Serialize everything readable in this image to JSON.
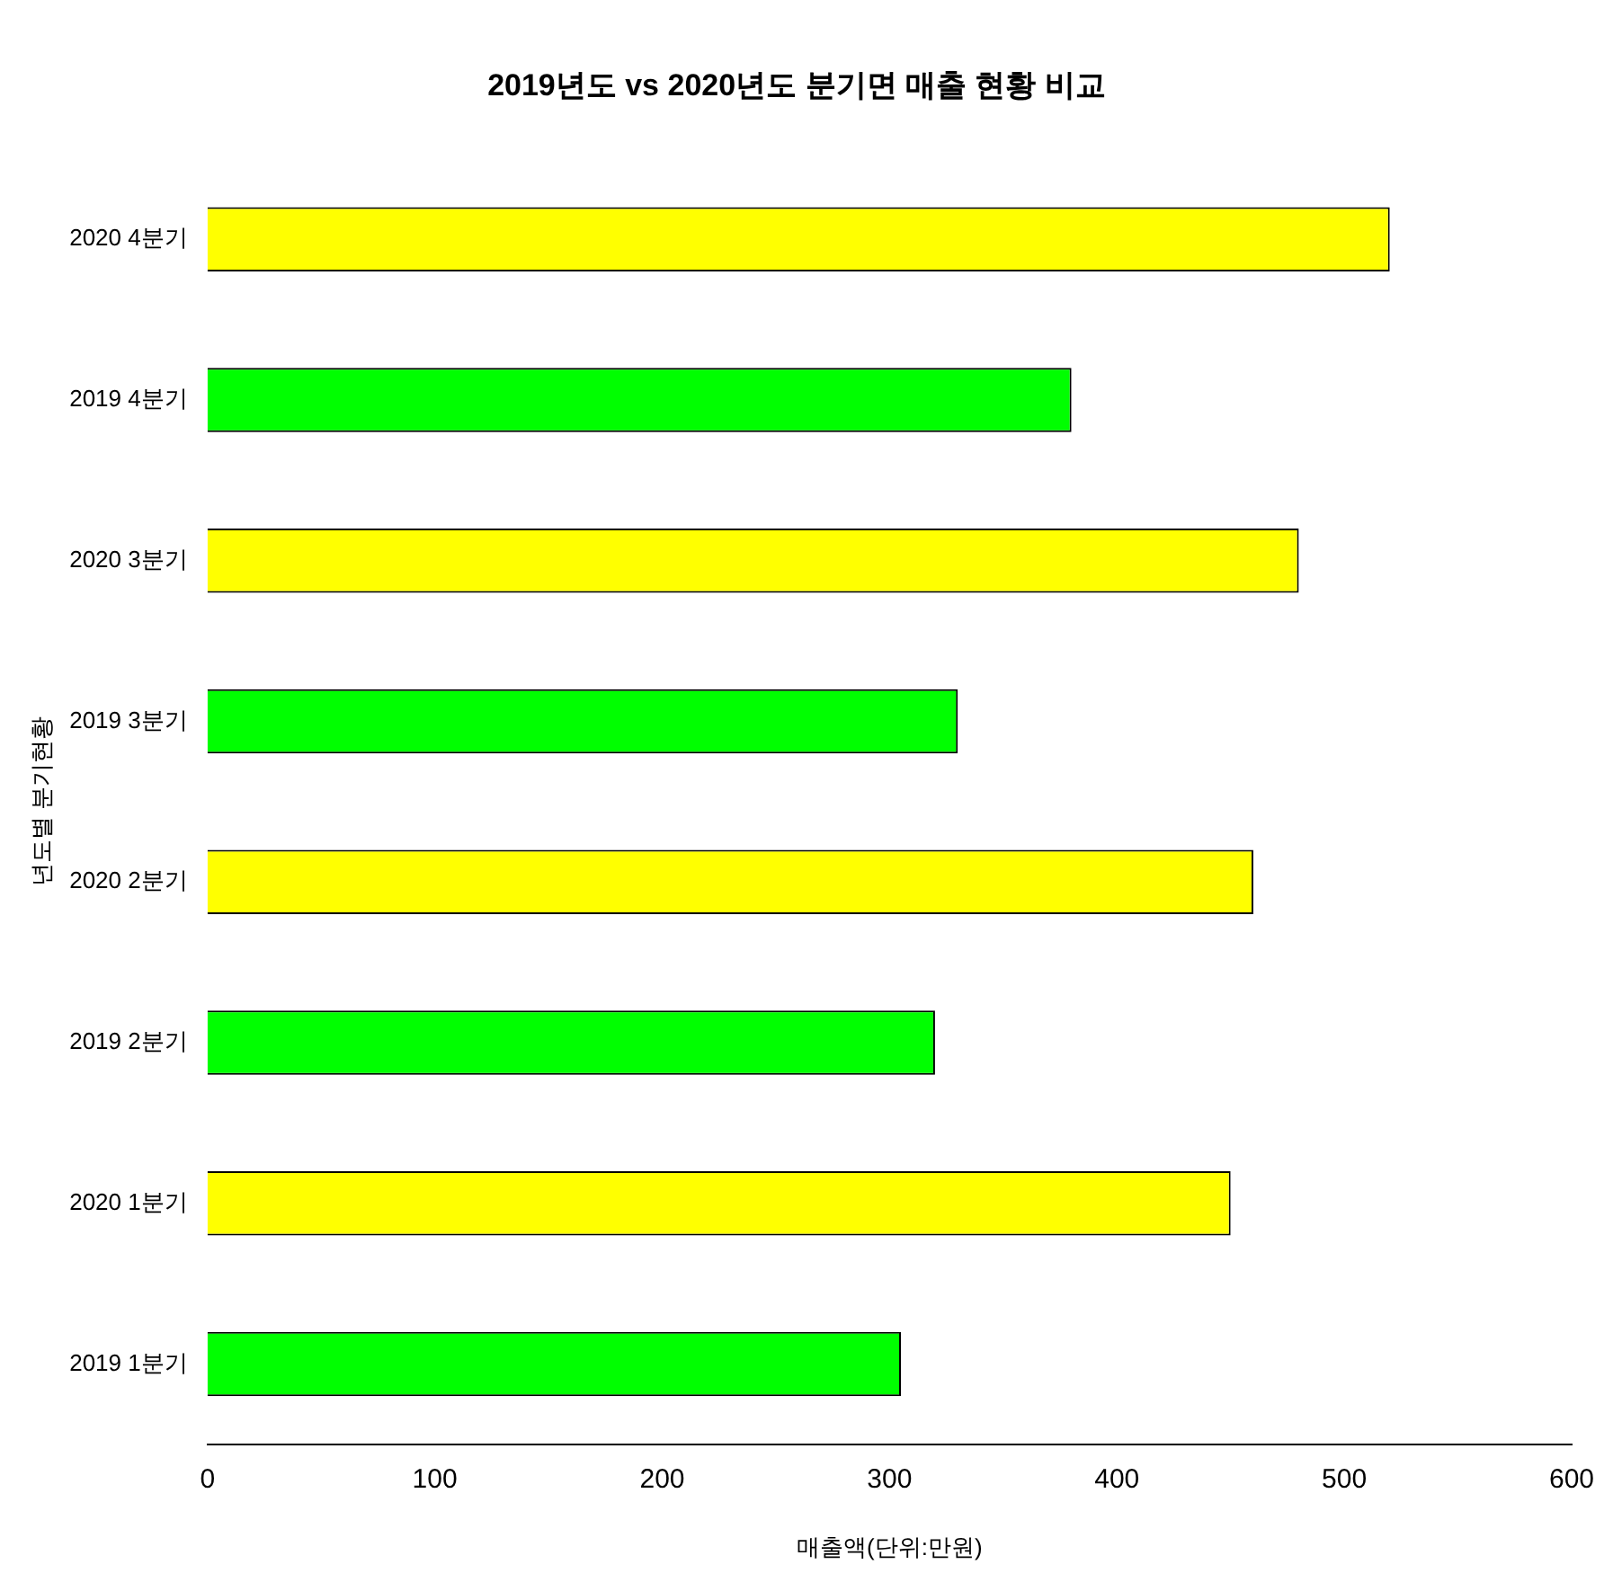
{
  "chart_data": {
    "type": "bar",
    "orientation": "horizontal",
    "title": "2019년도 vs 2020년도 분기면 매출 현황 비교",
    "xlabel": "매출액(단위:만원)",
    "ylabel": "년도별 분기현황",
    "categories": [
      "2020 4분기",
      "2019 4분기",
      "2020 3분기",
      "2019 3분기",
      "2020 2분기",
      "2019 2분기",
      "2020 1분기",
      "2019 1분기"
    ],
    "values": [
      520,
      380,
      480,
      330,
      460,
      320,
      450,
      305
    ],
    "colors": [
      "#ffff00",
      "#00ff00",
      "#ffff00",
      "#00ff00",
      "#ffff00",
      "#00ff00",
      "#ffff00",
      "#00ff00"
    ],
    "xlim": [
      0,
      600
    ],
    "xticks": [
      0,
      100,
      200,
      300,
      400,
      500,
      600
    ],
    "grid": false,
    "legend": false
  }
}
